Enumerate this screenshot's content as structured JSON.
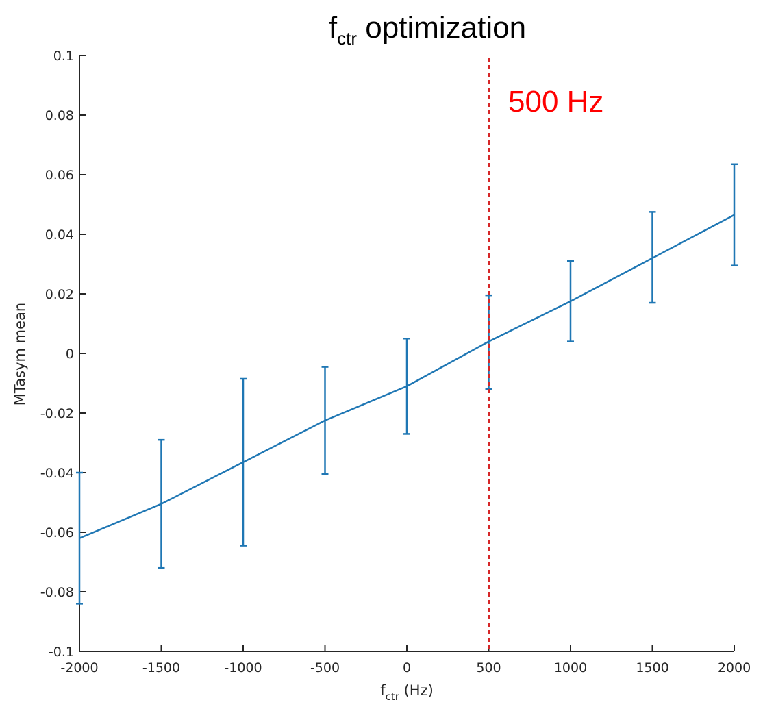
{
  "chart_data": {
    "type": "line",
    "title": {
      "main": "f",
      "sub": "ctr",
      "rest": " optimization"
    },
    "xlabel": {
      "main": "f",
      "sub": "ctr",
      "rest": " (Hz)"
    },
    "ylabel": "MTasym mean",
    "x": [
      -2000,
      -1500,
      -1000,
      -500,
      0,
      500,
      1000,
      1500,
      2000
    ],
    "series": [
      {
        "name": "MTasym mean",
        "values": [
          -0.062,
          -0.0505,
          -0.0365,
          -0.0225,
          -0.011,
          0.004,
          0.0175,
          0.032,
          0.0465
        ],
        "err_low": [
          -0.084,
          -0.072,
          -0.0645,
          -0.0405,
          -0.027,
          -0.012,
          0.004,
          0.017,
          0.0295
        ],
        "err_high": [
          -0.04,
          -0.029,
          -0.0085,
          -0.0045,
          0.005,
          0.0195,
          0.031,
          0.0475,
          0.0635
        ],
        "color": "#1f77b4"
      }
    ],
    "xlim": [
      -2000,
      2000
    ],
    "ylim": [
      -0.1,
      0.1
    ],
    "xticks": [
      -2000,
      -1500,
      -1000,
      -500,
      0,
      500,
      1000,
      1500,
      2000
    ],
    "xtick_labels": [
      "-2000",
      "-1500",
      "-1000",
      "-500",
      "0",
      "500",
      "1000",
      "1500",
      "2000"
    ],
    "yticks": [
      -0.1,
      -0.08,
      -0.06,
      -0.04,
      -0.02,
      0,
      0.02,
      0.04,
      0.06,
      0.08,
      0.1
    ],
    "ytick_labels": [
      "-0.1",
      "-0.08",
      "-0.06",
      "-0.04",
      "-0.02",
      "0",
      "0.02",
      "0.04",
      "0.06",
      "0.08",
      "0.1"
    ],
    "vline": {
      "x": 500,
      "color": "#d62728",
      "label": "500 Hz",
      "label_color": "#ff0000"
    },
    "grid": false
  }
}
